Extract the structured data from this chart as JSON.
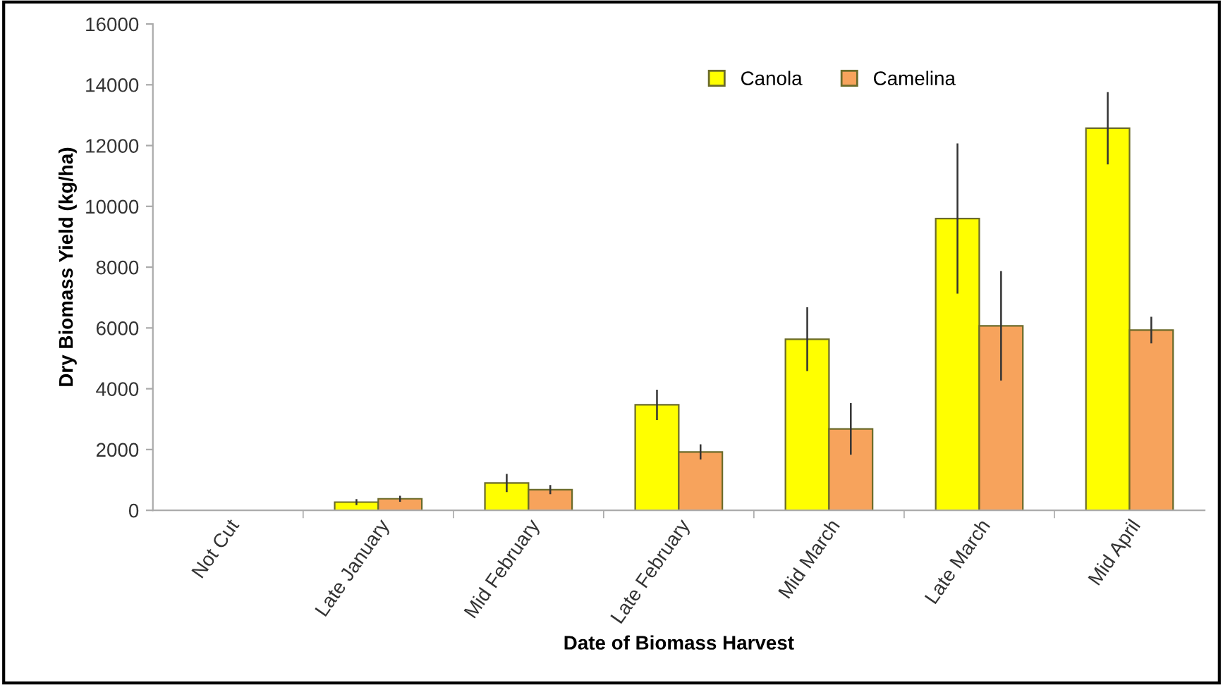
{
  "chart_data": {
    "type": "bar",
    "xlabel": "Date of Biomass Harvest",
    "ylabel": "Dry Biomass Yield (kg/ha)",
    "categories": [
      "Not Cut",
      "Late January",
      "Mid February",
      "Late February",
      "Mid March",
      "Late March",
      "Mid April"
    ],
    "series": [
      {
        "name": "Canola",
        "color": "#ffff00",
        "values": [
          null,
          270,
          900,
          3470,
          5630,
          9600,
          12570
        ],
        "errors": [
          null,
          100,
          300,
          500,
          1050,
          2470,
          1190
        ]
      },
      {
        "name": "Camelina",
        "color": "#f7a35c",
        "values": [
          null,
          380,
          680,
          1920,
          2680,
          6070,
          5930
        ],
        "errors": [
          null,
          100,
          150,
          250,
          850,
          1800,
          440
        ]
      }
    ],
    "ylim": [
      0,
      16000
    ],
    "yticks": [
      0,
      2000,
      4000,
      6000,
      8000,
      10000,
      12000,
      14000,
      16000
    ],
    "grid": false,
    "legend": "top right"
  }
}
